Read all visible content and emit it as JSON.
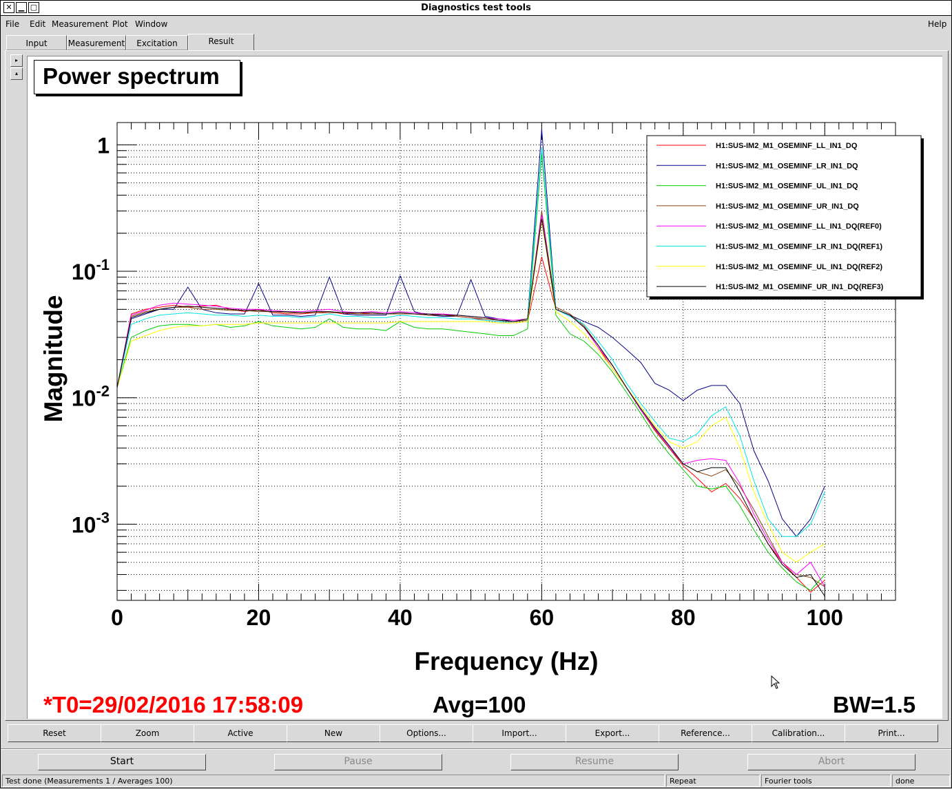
{
  "window": {
    "title": "Diagnostics test tools",
    "close_glyph": "✕",
    "min_glyph": "▁",
    "max_glyph": "▢"
  },
  "menu": {
    "file": "File",
    "edit": "Edit",
    "measurement": "Measurement",
    "plot": "Plot",
    "window": "Window",
    "help": "Help"
  },
  "tabs": [
    "Input",
    "Measurement",
    "Excitation",
    "Result"
  ],
  "active_tab": "Result",
  "side_buttons": [
    "▸",
    "▴"
  ],
  "plot": {
    "title": "Power spectrum",
    "t0": "*T0=29/02/2016 17:58:09",
    "avg": "Avg=100",
    "bw": "BW=1.5",
    "t0_color": "#ff0000"
  },
  "chart_data": {
    "type": "line",
    "title": "Power spectrum",
    "xlabel": "Frequency (Hz)",
    "ylabel": "Magnitude",
    "xlim": [
      0,
      110
    ],
    "ylim": [
      0.00025,
      1.5
    ],
    "yscale": "log",
    "grid": true,
    "legend_position": "top-right",
    "x_ticks": [
      "0",
      "20",
      "40",
      "60",
      "80",
      "100"
    ],
    "y_ticks": [
      {
        "base": "1",
        "exp": ""
      },
      {
        "base": "10",
        "exp": "-1"
      },
      {
        "base": "10",
        "exp": "-2"
      },
      {
        "base": "10",
        "exp": "-3"
      }
    ],
    "x": [
      0,
      2,
      4,
      6,
      8,
      10,
      12,
      14,
      16,
      18,
      20,
      22,
      24,
      26,
      28,
      30,
      32,
      34,
      36,
      38,
      40,
      42,
      44,
      46,
      48,
      50,
      52,
      54,
      56,
      58,
      60,
      62,
      64,
      66,
      68,
      70,
      72,
      74,
      76,
      78,
      80,
      82,
      84,
      86,
      88,
      90,
      92,
      94,
      96,
      98,
      100
    ],
    "series": [
      {
        "name": "H1:SUS-IM2_M1_OSEMINF_LL_IN1_DQ",
        "color": "#ff0000",
        "values": [
          0.012,
          0.046,
          0.05,
          0.052,
          0.054,
          0.052,
          0.053,
          0.054,
          0.05,
          0.048,
          0.05,
          0.047,
          0.046,
          0.046,
          0.047,
          0.048,
          0.046,
          0.047,
          0.046,
          0.046,
          0.046,
          0.046,
          0.045,
          0.046,
          0.044,
          0.043,
          0.041,
          0.04,
          0.039,
          0.04,
          0.13,
          0.05,
          0.045,
          0.036,
          0.025,
          0.017,
          0.012,
          0.008,
          0.0055,
          0.004,
          0.0029,
          0.0023,
          0.0018,
          0.0021,
          0.0016,
          0.0011,
          0.0007,
          0.0005,
          0.00038,
          0.00029,
          0.00036
        ]
      },
      {
        "name": "H1:SUS-IM2_M1_OSEMINF_LR_IN1_DQ",
        "color": "#00008b",
        "values": [
          0.012,
          0.042,
          0.046,
          0.05,
          0.05,
          0.075,
          0.05,
          0.047,
          0.046,
          0.046,
          0.08,
          0.045,
          0.045,
          0.044,
          0.045,
          0.09,
          0.046,
          0.045,
          0.045,
          0.045,
          0.092,
          0.048,
          0.045,
          0.044,
          0.044,
          0.086,
          0.044,
          0.042,
          0.04,
          0.041,
          1.32,
          0.05,
          0.045,
          0.04,
          0.036,
          0.03,
          0.024,
          0.019,
          0.013,
          0.0115,
          0.0095,
          0.0115,
          0.0125,
          0.0125,
          0.009,
          0.0038,
          0.0022,
          0.0011,
          0.0008,
          0.0011,
          0.002
        ]
      },
      {
        "name": "H1:SUS-IM2_M1_OSEMINF_UL_IN1_DQ",
        "color": "#00cc00",
        "values": [
          0.012,
          0.03,
          0.034,
          0.037,
          0.038,
          0.038,
          0.037,
          0.038,
          0.036,
          0.037,
          0.04,
          0.037,
          0.036,
          0.035,
          0.036,
          0.042,
          0.036,
          0.035,
          0.035,
          0.034,
          0.04,
          0.036,
          0.035,
          0.035,
          0.034,
          0.033,
          0.032,
          0.031,
          0.031,
          0.035,
          0.85,
          0.045,
          0.032,
          0.028,
          0.022,
          0.016,
          0.011,
          0.0075,
          0.005,
          0.0036,
          0.0027,
          0.002,
          0.0019,
          0.002,
          0.0014,
          0.0009,
          0.0006,
          0.00045,
          0.00035,
          0.0003,
          0.0004
        ]
      },
      {
        "name": "H1:SUS-IM2_M1_OSEMINF_UR_IN1_DQ",
        "color": "#8b4513",
        "values": [
          0.012,
          0.044,
          0.048,
          0.05,
          0.052,
          0.052,
          0.05,
          0.05,
          0.049,
          0.049,
          0.048,
          0.048,
          0.047,
          0.047,
          0.047,
          0.047,
          0.047,
          0.046,
          0.046,
          0.046,
          0.046,
          0.046,
          0.045,
          0.045,
          0.044,
          0.043,
          0.042,
          0.041,
          0.04,
          0.041,
          0.3,
          0.052,
          0.046,
          0.037,
          0.026,
          0.018,
          0.012,
          0.008,
          0.0056,
          0.004,
          0.003,
          0.0026,
          0.0024,
          0.0027,
          0.002,
          0.0013,
          0.0008,
          0.0005,
          0.0004,
          0.00038,
          0.00032
        ]
      },
      {
        "name": "H1:SUS-IM2_M1_OSEMINF_LL_IN1_DQ(REF0)",
        "color": "#ff00ff",
        "values": [
          0.012,
          0.045,
          0.049,
          0.054,
          0.056,
          0.055,
          0.054,
          0.053,
          0.051,
          0.05,
          0.05,
          0.049,
          0.048,
          0.048,
          0.049,
          0.05,
          0.048,
          0.047,
          0.048,
          0.047,
          0.048,
          0.047,
          0.046,
          0.046,
          0.045,
          0.044,
          0.043,
          0.042,
          0.041,
          0.042,
          0.28,
          0.05,
          0.045,
          0.036,
          0.025,
          0.018,
          0.012,
          0.008,
          0.0057,
          0.0041,
          0.003,
          0.0032,
          0.0033,
          0.0032,
          0.0021,
          0.0012,
          0.00075,
          0.0005,
          0.0004,
          0.0005,
          0.00032
        ]
      },
      {
        "name": "H1:SUS-IM2_M1_OSEMINF_LR_IN1_DQ(REF1)",
        "color": "#00e5e5",
        "values": [
          0.012,
          0.038,
          0.042,
          0.045,
          0.046,
          0.047,
          0.046,
          0.045,
          0.045,
          0.044,
          0.045,
          0.044,
          0.044,
          0.043,
          0.044,
          0.046,
          0.044,
          0.044,
          0.043,
          0.043,
          0.045,
          0.044,
          0.043,
          0.043,
          0.042,
          0.042,
          0.041,
          0.04,
          0.039,
          0.04,
          0.95,
          0.05,
          0.044,
          0.038,
          0.028,
          0.02,
          0.013,
          0.009,
          0.0065,
          0.0048,
          0.0045,
          0.0052,
          0.0072,
          0.0085,
          0.005,
          0.0022,
          0.0011,
          0.0008,
          0.0008,
          0.001,
          0.0018
        ]
      },
      {
        "name": "H1:SUS-IM2_M1_OSEMINF_UL_IN1_DQ(REF2)",
        "color": "#ffff00",
        "values": [
          0.012,
          0.028,
          0.031,
          0.034,
          0.036,
          0.037,
          0.037,
          0.038,
          0.038,
          0.038,
          0.039,
          0.039,
          0.039,
          0.039,
          0.039,
          0.039,
          0.039,
          0.039,
          0.039,
          0.039,
          0.04,
          0.04,
          0.04,
          0.04,
          0.04,
          0.04,
          0.04,
          0.039,
          0.039,
          0.04,
          0.25,
          0.048,
          0.04,
          0.032,
          0.024,
          0.017,
          0.012,
          0.0085,
          0.006,
          0.0045,
          0.004,
          0.0045,
          0.006,
          0.007,
          0.004,
          0.0018,
          0.001,
          0.0006,
          0.0005,
          0.0006,
          0.0007
        ]
      },
      {
        "name": "H1:SUS-IM2_M1_OSEMINF_UR_IN1_DQ(REF3)",
        "color": "#000000",
        "values": [
          0.012,
          0.043,
          0.047,
          0.05,
          0.052,
          0.053,
          0.052,
          0.051,
          0.05,
          0.049,
          0.049,
          0.048,
          0.048,
          0.047,
          0.048,
          0.048,
          0.047,
          0.047,
          0.047,
          0.046,
          0.047,
          0.046,
          0.046,
          0.045,
          0.045,
          0.044,
          0.043,
          0.041,
          0.04,
          0.042,
          0.26,
          0.05,
          0.045,
          0.036,
          0.026,
          0.018,
          0.012,
          0.0082,
          0.0058,
          0.0042,
          0.003,
          0.0026,
          0.0028,
          0.0028,
          0.0018,
          0.0011,
          0.0007,
          0.00048,
          0.00038,
          0.0004,
          0.00027
        ]
      }
    ]
  },
  "plot_buttons": [
    "Reset",
    "Zoom",
    "Active",
    "New",
    "Options...",
    "Import...",
    "Export...",
    "Reference...",
    "Calibration...",
    "Print..."
  ],
  "controls": {
    "start": "Start",
    "pause": "Pause",
    "resume": "Resume",
    "abort": "Abort"
  },
  "status": {
    "message": "Test done (Measurements 1 / Averages 100)",
    "repeat": "Repeat",
    "fourier": "Fourier tools",
    "done": "done"
  }
}
